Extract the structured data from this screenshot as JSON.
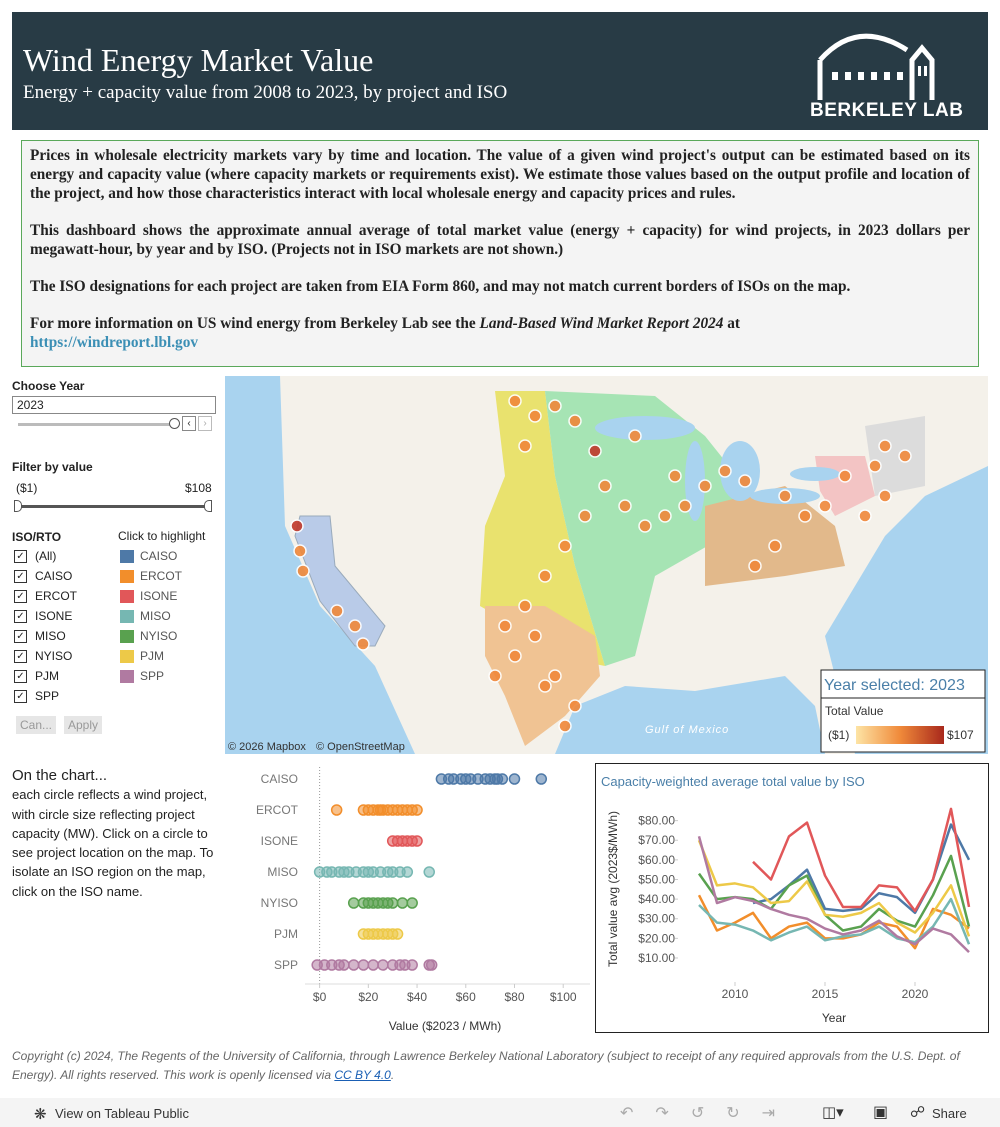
{
  "header": {
    "title": "Wind Energy Market Value",
    "subtitle": "Energy + capacity value from 2008 to 2023, by project and ISO",
    "logo": "BERKELEY LAB"
  },
  "intro": {
    "paragraphs": [
      "Prices in wholesale electricity markets vary by time and location. The value of  a given wind project's output can be estimated based on its energy and capacity value (where capacity markets or requirements exist). We estimate those values based on the output profile and location of the project, and how those characteristics interact with local wholesale energy and capacity prices and rules.",
      "This dashboard shows the approximate annual average of total market value (energy + capacity) for wind projects, in 2023 dollars per megawatt-hour, by year and by ISO.  (Projects not in ISO markets are not shown.)",
      "The ISO designations for each project are taken from EIA Form 860, and may not match current borders of ISOs on the map."
    ],
    "more_text": "For more information on US wind energy from Berkeley Lab see the ",
    "more_report": "Land-Based Wind Market Report 2024",
    "more_at": " at",
    "more_link": "https://windreport.lbl.gov"
  },
  "filters": {
    "year_label": "Choose Year",
    "year_value": "2023",
    "value_label": "Filter by value",
    "value_min": "($1)",
    "value_max": "$108",
    "iso_label": "ISO/RTO",
    "iso_items": [
      "(All)",
      "CAISO",
      "ERCOT",
      "ISONE",
      "MISO",
      "NYISO",
      "PJM",
      "SPP"
    ],
    "cancel": "Can...",
    "apply": "Apply",
    "highlight_label": "Click to highlight"
  },
  "map": {
    "year_selected": "Year selected: 2023",
    "legend_title": "Total Value",
    "legend_min": "($1)",
    "legend_max": "$107",
    "attribution_mapbox": "© 2026 Mapbox",
    "attribution_osm": "© OpenStreetMap",
    "gulf": "Gulf of Mexico"
  },
  "notes": {
    "heading": "On the chart...",
    "body": "each circle reflects a wind project, with circle size reflecting project capacity (MW).  Click on a circle to see project location on the map. To isolate an ISO region on the map, click on the ISO name."
  },
  "chart_data": [
    {
      "type": "strip",
      "categories": [
        "CAISO",
        "ERCOT",
        "ISONE",
        "MISO",
        "NYISO",
        "PJM",
        "SPP"
      ],
      "colors": [
        "#4e79a7",
        "#f28e2b",
        "#e15759",
        "#76b7b2",
        "#59a14f",
        "#edc948",
        "#b07aa1"
      ],
      "values": [
        [
          50,
          53,
          55,
          58,
          60,
          62,
          65,
          68,
          70,
          72,
          73,
          75,
          80,
          91
        ],
        [
          7,
          18,
          20,
          22,
          24,
          25,
          26,
          28,
          30,
          32,
          34,
          36,
          38,
          40
        ],
        [
          30,
          32,
          34,
          36,
          38,
          40
        ],
        [
          0,
          3,
          5,
          8,
          10,
          12,
          15,
          18,
          20,
          22,
          25,
          28,
          30,
          33,
          36,
          45
        ],
        [
          14,
          18,
          20,
          22,
          24,
          26,
          28,
          30,
          34,
          38
        ],
        [
          18,
          20,
          22,
          24,
          26,
          28,
          30,
          32
        ],
        [
          -1,
          2,
          5,
          8,
          10,
          14,
          18,
          22,
          26,
          30,
          33,
          35,
          38,
          45,
          46
        ]
      ],
      "x_label": "Value ($2023 / MWh)",
      "xlim": [
        -6,
        111
      ],
      "xticks": [
        {
          "value": 0,
          "label": "$0"
        },
        {
          "value": 20,
          "label": "$20"
        },
        {
          "value": 40,
          "label": "$40"
        },
        {
          "value": 60,
          "label": "$60"
        },
        {
          "value": 80,
          "label": "$80"
        },
        {
          "value": 100,
          "label": "$100"
        }
      ]
    },
    {
      "type": "line",
      "title": "Capacity-weighted average total value by ISO",
      "x_label": "Year",
      "y_label": "Total value avg (2023$/MWh)",
      "x": [
        2008,
        2009,
        2010,
        2011,
        2012,
        2013,
        2014,
        2015,
        2016,
        2017,
        2018,
        2019,
        2020,
        2021,
        2022,
        2023
      ],
      "xlim": [
        2007,
        2024
      ],
      "xticks": [
        2010,
        2015,
        2020
      ],
      "ylim": [
        0,
        90
      ],
      "yticks": [
        {
          "value": 10,
          "label": "$10.00"
        },
        {
          "value": 20,
          "label": "$20.00"
        },
        {
          "value": 30,
          "label": "$30.00"
        },
        {
          "value": 40,
          "label": "$40.00"
        },
        {
          "value": 50,
          "label": "$50.00"
        },
        {
          "value": 60,
          "label": "$60.00"
        },
        {
          "value": 70,
          "label": "$70.00"
        },
        {
          "value": 80,
          "label": "$80.00"
        }
      ],
      "series": [
        {
          "name": "CAISO",
          "color": "#4e79a7",
          "values": [
            null,
            null,
            null,
            38,
            40,
            47,
            55,
            35,
            34,
            35,
            43,
            41,
            33,
            50,
            78,
            60
          ]
        },
        {
          "name": "ERCOT",
          "color": "#f28e2b",
          "values": [
            42,
            24,
            28,
            33,
            20,
            26,
            28,
            20,
            20,
            22,
            28,
            26,
            15,
            35,
            32,
            25
          ]
        },
        {
          "name": "ISONE",
          "color": "#e15759",
          "values": [
            null,
            null,
            null,
            59,
            50,
            72,
            79,
            52,
            36,
            36,
            47,
            46,
            34,
            50,
            86,
            36
          ]
        },
        {
          "name": "MISO",
          "color": "#76b7b2",
          "values": [
            37,
            28,
            27,
            24,
            19,
            23,
            26,
            19,
            21,
            22,
            26,
            20,
            18,
            26,
            40,
            17
          ]
        },
        {
          "name": "NYISO",
          "color": "#59a14f",
          "values": [
            53,
            40,
            41,
            40,
            35,
            47,
            52,
            32,
            24,
            26,
            35,
            29,
            26,
            42,
            62,
            26
          ]
        },
        {
          "name": "PJM",
          "color": "#edc948",
          "values": [
            70,
            47,
            48,
            46,
            38,
            39,
            49,
            32,
            31,
            33,
            38,
            28,
            23,
            33,
            47,
            21
          ]
        },
        {
          "name": "SPP",
          "color": "#b07aa1",
          "values": [
            72,
            38,
            41,
            39,
            35,
            32,
            30,
            25,
            22,
            24,
            29,
            21,
            17,
            25,
            22,
            13
          ]
        }
      ]
    }
  ],
  "copyright": {
    "text": "Copyright (c) 2024, The Regents of the University of California, through Lawrence Berkeley National Laboratory (subject to receipt of any required approvals from the U.S. Dept. of Energy). All rights reserved. This work is openly licensed via ",
    "link": "CC BY 4.0",
    "end": "."
  },
  "toolbar": {
    "view": "View on Tableau Public",
    "share": "Share"
  }
}
